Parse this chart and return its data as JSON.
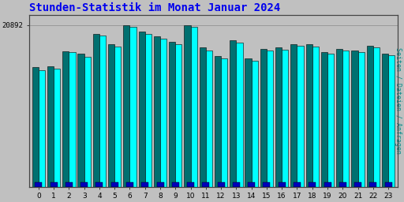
{
  "title": "Stunden-Statistik im Monat Januar 2024",
  "ylabel": "Seiten / Dateien / Anfragen",
  "xlabel_values": [
    0,
    1,
    2,
    3,
    4,
    5,
    6,
    7,
    8,
    9,
    10,
    11,
    12,
    13,
    14,
    15,
    16,
    17,
    18,
    19,
    20,
    21,
    22,
    23
  ],
  "ytick_label": "20892",
  "bar1_values": [
    0.72,
    0.725,
    0.815,
    0.8,
    0.92,
    0.855,
    0.97,
    0.93,
    0.905,
    0.87,
    0.97,
    0.838,
    0.787,
    0.88,
    0.77,
    0.828,
    0.835,
    0.858,
    0.858,
    0.808,
    0.83,
    0.82,
    0.848,
    0.798
  ],
  "bar2_values": [
    0.7,
    0.71,
    0.808,
    0.782,
    0.91,
    0.84,
    0.96,
    0.918,
    0.89,
    0.858,
    0.96,
    0.82,
    0.77,
    0.868,
    0.758,
    0.818,
    0.825,
    0.848,
    0.84,
    0.798,
    0.818,
    0.808,
    0.835,
    0.788
  ],
  "bar3_values": [
    0.025,
    0.025,
    0.025,
    0.025,
    0.025,
    0.025,
    0.025,
    0.025,
    0.025,
    0.025,
    0.025,
    0.025,
    0.025,
    0.025,
    0.025,
    0.025,
    0.025,
    0.025,
    0.025,
    0.025,
    0.025,
    0.025,
    0.025,
    0.025
  ],
  "color_dark": "#007070",
  "color_cyan": "#00FFFF",
  "color_blue": "#0000BB",
  "bg_color": "#C0C0C0",
  "plot_bg": "#C0C0C0",
  "title_color": "#0000EE",
  "ylabel_color": "#008888",
  "ytick_color": "#000000",
  "xtick_color": "#000000",
  "title_fontsize": 10,
  "axis_fontsize": 6.5,
  "ylabel_fontsize": 6,
  "ylim": [
    0,
    1.03
  ],
  "ytick_pos": 0.97
}
